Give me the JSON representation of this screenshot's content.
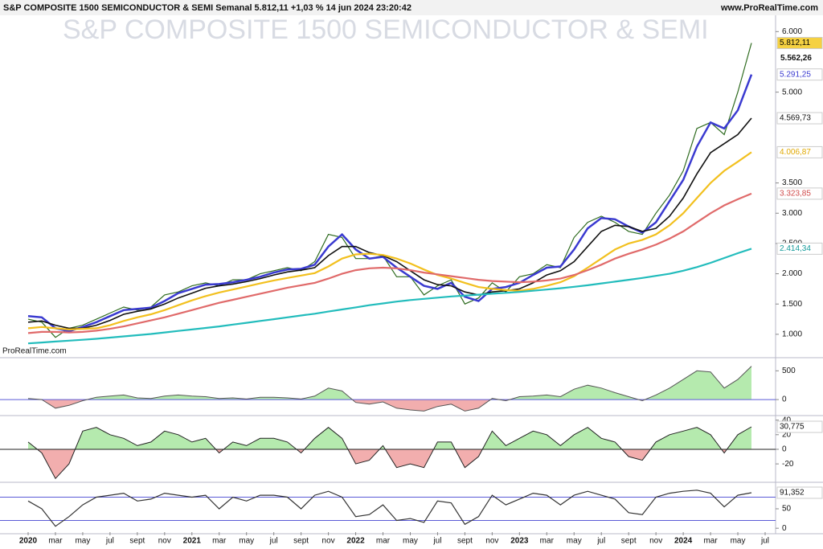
{
  "header": {
    "title": "S&P COMPOSITE 1500 SEMICONDUCTOR & SEMI Semanal 5.812,11 +1,03 % 14 jun 2024 23:20:42",
    "site": "www.ProRealTime.com",
    "watermark": "S&P COMPOSITE 1500 SEMICONDUCTOR & SEMI",
    "credit": "ProRealTime.com"
  },
  "chart_data": [
    {
      "type": "line",
      "categories": [
        "2020",
        null,
        "mar",
        null,
        "may",
        null,
        "jul",
        null,
        "sept",
        null,
        "nov",
        null,
        "2021",
        null,
        "mar",
        null,
        "may",
        null,
        "jul",
        null,
        "sept",
        null,
        "nov",
        null,
        "2022",
        null,
        "mar",
        null,
        "may",
        null,
        "jul",
        null,
        "sept",
        null,
        "nov",
        null,
        "2023",
        null,
        "mar",
        null,
        "may",
        null,
        "jul",
        null,
        "sept",
        null,
        "nov",
        null,
        "2024",
        null,
        "mar",
        null,
        "may",
        null,
        "jul"
      ],
      "ylim": [
        640,
        6230
      ],
      "yticks": [
        {
          "value": 1000,
          "label": "1.000"
        },
        {
          "value": 1500,
          "label": "1.500"
        },
        {
          "value": 2000,
          "label": "2.000"
        },
        {
          "value": 2500,
          "label": "2.500"
        },
        {
          "value": 3000,
          "label": "3.000"
        },
        {
          "value": 3500,
          "label": "3.500"
        },
        {
          "value": 5000,
          "label": "5.000"
        },
        {
          "value": 6000,
          "label": "6.000"
        }
      ],
      "annotations": [
        {
          "value": 5562.26,
          "label": "5.562,26"
        }
      ],
      "series": [
        {
          "color": "#2e6b1f",
          "width": 1.2,
          "last_label": "5.812,11",
          "label_bg": "#f5d142",
          "label_color": "#000000",
          "values": [
            1250,
            1200,
            950,
            1100,
            1150,
            1250,
            1350,
            1450,
            1400,
            1450,
            1650,
            1700,
            1800,
            1850,
            1800,
            1900,
            1900,
            2000,
            2050,
            2100,
            2050,
            2200,
            2650,
            2600,
            2250,
            2250,
            2300,
            1950,
            1950,
            1650,
            1800,
            1900,
            1500,
            1600,
            1850,
            1700,
            1950,
            2000,
            2150,
            2100,
            2600,
            2850,
            2950,
            2850,
            2700,
            2650,
            3000,
            3300,
            3700,
            4400,
            4500,
            4300,
            5000,
            5812.11,
            null
          ]
        },
        {
          "color": "#3a3ad0",
          "width": 2.5,
          "last_label": "5.291,25",
          "label_bg": "#ffffff",
          "label_color": "#3a3ad0",
          "values": [
            1300,
            1280,
            1100,
            1050,
            1120,
            1200,
            1300,
            1400,
            1420,
            1440,
            1550,
            1680,
            1750,
            1820,
            1830,
            1860,
            1900,
            1950,
            2020,
            2070,
            2080,
            2150,
            2450,
            2650,
            2400,
            2250,
            2280,
            2100,
            1950,
            1800,
            1750,
            1850,
            1620,
            1550,
            1750,
            1780,
            1850,
            1980,
            2100,
            2120,
            2400,
            2750,
            2920,
            2900,
            2780,
            2680,
            2850,
            3200,
            3550,
            4100,
            4500,
            4400,
            4700,
            5291.25,
            null
          ]
        },
        {
          "color": "#111111",
          "width": 1.6,
          "last_label": "4.569,73",
          "label_bg": "#ffffff",
          "label_color": "#111111",
          "values": [
            1200,
            1220,
            1150,
            1100,
            1100,
            1150,
            1230,
            1330,
            1380,
            1420,
            1500,
            1600,
            1680,
            1760,
            1800,
            1830,
            1870,
            1920,
            1980,
            2030,
            2060,
            2100,
            2300,
            2450,
            2450,
            2350,
            2300,
            2200,
            2050,
            1900,
            1820,
            1800,
            1700,
            1650,
            1700,
            1720,
            1750,
            1850,
            1980,
            2050,
            2200,
            2450,
            2700,
            2800,
            2780,
            2700,
            2750,
            2950,
            3250,
            3650,
            4000,
            4150,
            4300,
            4569.73,
            null
          ]
        },
        {
          "color": "#f2c01e",
          "width": 2.2,
          "last_label": "4.006,87",
          "label_bg": "#ffffff",
          "label_color": "#e0a800",
          "values": [
            1100,
            1120,
            1100,
            1080,
            1090,
            1100,
            1150,
            1220,
            1280,
            1330,
            1400,
            1480,
            1560,
            1630,
            1690,
            1740,
            1790,
            1840,
            1890,
            1930,
            1970,
            2010,
            2120,
            2250,
            2320,
            2330,
            2310,
            2250,
            2170,
            2070,
            1980,
            1920,
            1850,
            1780,
            1750,
            1730,
            1720,
            1750,
            1800,
            1860,
            1960,
            2100,
            2250,
            2400,
            2500,
            2560,
            2650,
            2800,
            3000,
            3250,
            3500,
            3700,
            3850,
            4006.87,
            null
          ]
        },
        {
          "color": "#e06a6a",
          "width": 2.2,
          "last_label": "3.323,85",
          "label_bg": "#ffffff",
          "label_color": "#d04a4a",
          "values": [
            1020,
            1040,
            1040,
            1030,
            1040,
            1060,
            1090,
            1130,
            1180,
            1230,
            1280,
            1340,
            1400,
            1460,
            1520,
            1570,
            1620,
            1670,
            1720,
            1770,
            1810,
            1850,
            1920,
            2000,
            2060,
            2090,
            2100,
            2090,
            2060,
            2020,
            1990,
            1960,
            1930,
            1900,
            1880,
            1870,
            1860,
            1870,
            1890,
            1920,
            1980,
            2060,
            2150,
            2250,
            2330,
            2400,
            2480,
            2580,
            2700,
            2850,
            3000,
            3130,
            3230,
            3323.85,
            null
          ]
        },
        {
          "color": "#22bcbc",
          "width": 2.2,
          "last_label": "2.414,34",
          "label_bg": "#ffffff",
          "label_color": "#139a9a",
          "values": [
            850,
            865,
            880,
            895,
            910,
            925,
            945,
            965,
            985,
            1005,
            1030,
            1055,
            1080,
            1105,
            1130,
            1160,
            1190,
            1220,
            1250,
            1280,
            1310,
            1340,
            1375,
            1410,
            1445,
            1480,
            1510,
            1540,
            1565,
            1585,
            1605,
            1625,
            1640,
            1655,
            1670,
            1685,
            1700,
            1720,
            1740,
            1760,
            1785,
            1810,
            1840,
            1870,
            1900,
            1930,
            1965,
            2000,
            2050,
            2110,
            2180,
            2260,
            2340,
            2414.34,
            null
          ]
        }
      ]
    },
    {
      "type": "area",
      "ylim": [
        -250,
        700
      ],
      "yticks": [
        0,
        500
      ],
      "color": "#555555",
      "values": [
        20,
        0,
        -150,
        -100,
        -20,
        40,
        60,
        80,
        30,
        20,
        60,
        80,
        60,
        50,
        20,
        30,
        10,
        40,
        40,
        30,
        10,
        60,
        200,
        150,
        -50,
        -80,
        -40,
        -150,
        -180,
        -200,
        -120,
        -80,
        -200,
        -150,
        20,
        -20,
        50,
        60,
        80,
        50,
        180,
        250,
        200,
        120,
        50,
        -20,
        80,
        200,
        350,
        500,
        480,
        200,
        350,
        580,
        null
      ]
    },
    {
      "type": "area",
      "ylim": [
        -43,
        44
      ],
      "yticks": [
        -20,
        0,
        20,
        40
      ],
      "color": "#222222",
      "last_label": "30,775",
      "values": [
        10,
        -5,
        -40,
        -20,
        25,
        30,
        20,
        15,
        5,
        10,
        25,
        20,
        10,
        15,
        -5,
        10,
        5,
        15,
        15,
        10,
        -5,
        15,
        30,
        15,
        -20,
        -15,
        5,
        -25,
        -20,
        -25,
        10,
        10,
        -25,
        -10,
        25,
        5,
        15,
        25,
        20,
        5,
        20,
        30,
        15,
        10,
        -10,
        -15,
        10,
        20,
        25,
        30,
        20,
        -5,
        20,
        30.775,
        null
      ]
    },
    {
      "type": "line",
      "ylim": [
        -10,
        112
      ],
      "yticks": [
        0,
        50
      ],
      "levels": [
        20,
        80
      ],
      "color": "#333333",
      "last_label": "91,352",
      "values": [
        70,
        50,
        5,
        30,
        60,
        80,
        85,
        90,
        70,
        75,
        90,
        85,
        80,
        85,
        50,
        80,
        70,
        85,
        85,
        80,
        50,
        85,
        95,
        80,
        30,
        35,
        60,
        20,
        25,
        15,
        70,
        65,
        10,
        30,
        85,
        60,
        75,
        90,
        85,
        60,
        85,
        95,
        85,
        75,
        40,
        35,
        80,
        90,
        95,
        98,
        90,
        55,
        85,
        91.352,
        null
      ]
    }
  ]
}
